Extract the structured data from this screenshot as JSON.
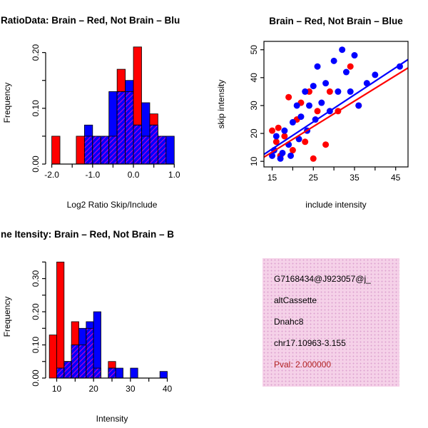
{
  "colors": {
    "red": "#ff0000",
    "blue": "#0000ff",
    "hatch": "#cc00cc",
    "axis": "#000000",
    "pval_text": "#b22222",
    "info_bg": "#f5d1e8",
    "info_dot": "#dda3cf"
  },
  "chart_data": [
    {
      "id": "hist-ratio",
      "type": "bar",
      "subtype": "histogram",
      "title": "RatioData: Brain – Red, Not Brain – Blu",
      "xlabel": "Log2 Ratio Skip/Include",
      "ylabel": "Frequency",
      "bin_start": -2.0,
      "bin_width": 0.2,
      "xlim": [
        -2.15,
        1.1
      ],
      "ylim": [
        0,
        0.22
      ],
      "xticks": {
        "values": [
          -2,
          -1.5,
          -1,
          -0.5,
          0,
          0.5,
          1
        ],
        "labels": [
          "-2.0",
          "",
          "-1.0",
          "",
          "0.0",
          "",
          "1.0"
        ]
      },
      "yticks": {
        "values": [
          0,
          0.05,
          0.1,
          0.15,
          0.2
        ],
        "labels": [
          "0.00",
          "",
          "0.10",
          "",
          "0.20"
        ]
      },
      "series": [
        {
          "name": "Brain",
          "color": "red",
          "values": [
            0.05,
            0,
            0,
            0.05,
            0.05,
            0.05,
            0.05,
            0.05,
            0.17,
            0.13,
            0.21,
            0.05,
            0.09,
            0.05,
            0
          ]
        },
        {
          "name": "Not Brain",
          "color": "blue",
          "values": [
            0,
            0,
            0,
            0,
            0.07,
            0.05,
            0.05,
            0.13,
            0.13,
            0.15,
            0.07,
            0.11,
            0.07,
            0.05,
            0.05
          ]
        }
      ]
    },
    {
      "id": "scatter-intensity",
      "type": "scatter",
      "title": "Brain – Red, Not Brain – Blue",
      "xlabel": "include intensity",
      "ylabel": "skip intensity",
      "xlim": [
        13,
        48
      ],
      "ylim": [
        8,
        53
      ],
      "xticks": {
        "values": [
          15,
          20,
          25,
          30,
          35,
          40,
          45
        ],
        "labels": [
          "15",
          "",
          "25",
          "",
          "35",
          "",
          "45"
        ]
      },
      "yticks": {
        "values": [
          10,
          20,
          30,
          40,
          50
        ],
        "labels": [
          "10",
          "20",
          "30",
          "40",
          "50"
        ]
      },
      "series": [
        {
          "name": "Brain",
          "color": "red",
          "points": [
            [
              15,
              21
            ],
            [
              16,
              17
            ],
            [
              16.5,
              22
            ],
            [
              17,
              12
            ],
            [
              18,
              19
            ],
            [
              19,
              33
            ],
            [
              20,
              14
            ],
            [
              21,
              25
            ],
            [
              22,
              31
            ],
            [
              23,
              17
            ],
            [
              24,
              35
            ],
            [
              25,
              11
            ],
            [
              26,
              28
            ],
            [
              28,
              16
            ],
            [
              29,
              35
            ],
            [
              31,
              28
            ],
            [
              34,
              44
            ],
            [
              36,
              30
            ]
          ]
        },
        {
          "name": "Not Brain",
          "color": "blue",
          "points": [
            [
              15,
              12
            ],
            [
              15.5,
              14
            ],
            [
              16,
              19
            ],
            [
              17,
              11
            ],
            [
              17.5,
              13
            ],
            [
              18,
              21
            ],
            [
              19,
              16
            ],
            [
              19.5,
              12
            ],
            [
              20,
              24
            ],
            [
              21,
              30
            ],
            [
              21.5,
              18
            ],
            [
              22,
              26
            ],
            [
              23,
              35
            ],
            [
              23.5,
              21
            ],
            [
              24,
              30
            ],
            [
              25,
              37
            ],
            [
              25.5,
              25
            ],
            [
              26,
              44
            ],
            [
              27,
              31
            ],
            [
              28,
              38
            ],
            [
              29,
              28
            ],
            [
              30,
              46
            ],
            [
              31,
              35
            ],
            [
              32,
              50
            ],
            [
              33,
              42
            ],
            [
              34,
              35
            ],
            [
              35,
              48
            ],
            [
              36,
              30
            ],
            [
              38,
              38
            ],
            [
              40,
              41
            ],
            [
              46,
              44
            ]
          ]
        }
      ],
      "fit_lines": [
        {
          "name": "brain-fit",
          "color": "red",
          "x": [
            13,
            48
          ],
          "y": [
            11.5,
            43.5
          ]
        },
        {
          "name": "notbrain-fit",
          "color": "blue",
          "x": [
            13,
            48
          ],
          "y": [
            12.5,
            46.5
          ]
        }
      ]
    },
    {
      "id": "hist-intensity",
      "type": "bar",
      "subtype": "histogram",
      "title": "ne Itensity: Brain – Red, Not Brain – B",
      "xlabel": "Intensity",
      "ylabel": "Frequency",
      "bin_start": 8,
      "bin_width": 2,
      "xlim": [
        7,
        43
      ],
      "ylim": [
        0,
        0.37
      ],
      "xticks": {
        "values": [
          10,
          15,
          20,
          25,
          30,
          35,
          40
        ],
        "labels": [
          "10",
          "",
          "20",
          "",
          "30",
          "",
          "40"
        ]
      },
      "yticks": {
        "values": [
          0,
          0.05,
          0.1,
          0.15,
          0.2,
          0.25,
          0.3,
          0.35
        ],
        "labels": [
          "0.00",
          "",
          "0.10",
          "",
          "0.20",
          "",
          "0.30",
          ""
        ]
      },
      "series": [
        {
          "name": "Brain",
          "color": "red",
          "values": [
            0.13,
            0.35,
            0.05,
            0.17,
            0.1,
            0.15,
            0.03,
            0,
            0.05,
            0,
            0,
            0,
            0,
            0,
            0,
            0,
            0
          ]
        },
        {
          "name": "Not Brain",
          "color": "blue",
          "values": [
            0,
            0.03,
            0.05,
            0.1,
            0.15,
            0.17,
            0.2,
            0,
            0.03,
            0.03,
            0,
            0.03,
            0,
            0,
            0,
            0.02,
            0
          ]
        }
      ]
    }
  ],
  "info_panel": {
    "lines": [
      "G7168434@J923057@j_",
      "altCassette",
      "Dnahc8",
      "chr17.10963-3.155"
    ],
    "pval": "Pval: 2.000000"
  }
}
